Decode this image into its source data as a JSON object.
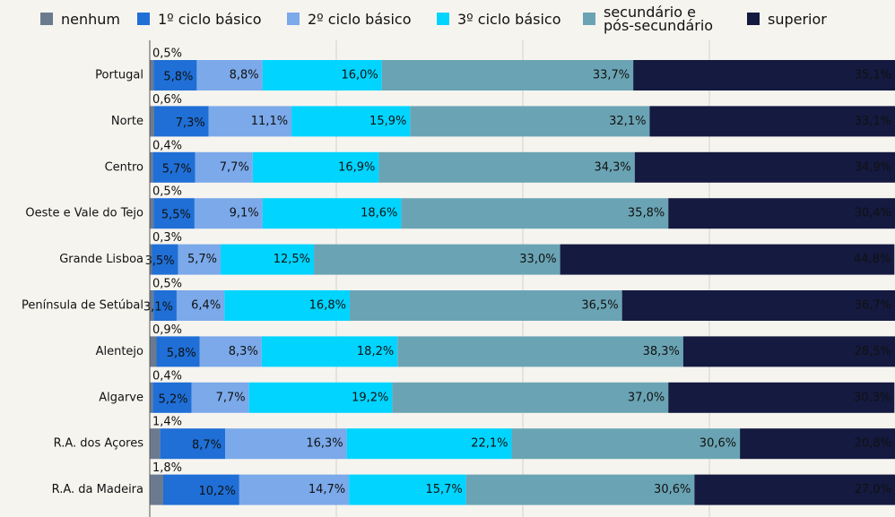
{
  "chart_data": {
    "type": "stacked_bar_horizontal",
    "categories": [
      "Portugal",
      "Norte",
      "Centro",
      "Oeste e Vale do Tejo",
      "Grande Lisboa",
      "Península de Setúbal",
      "Alentejo",
      "Algarve",
      "R.A. dos Açores",
      "R.A. da Madeira"
    ],
    "series": [
      {
        "name": "nenhum",
        "color": "#6c7a90",
        "values": [
          0.5,
          0.6,
          0.4,
          0.5,
          0.3,
          0.5,
          0.9,
          0.4,
          1.4,
          1.8
        ],
        "value_labels": [
          "0,5%",
          "0,6%",
          "0,4%",
          "0,5%",
          "0,3%",
          "0,5%",
          "0,9%",
          "0,4%",
          "1,4%",
          "1,8%"
        ]
      },
      {
        "name": "1º ciclo básico",
        "color": "#1f6fd6",
        "values": [
          5.8,
          7.3,
          5.7,
          5.5,
          3.5,
          3.1,
          5.8,
          5.2,
          8.7,
          10.2
        ],
        "value_labels": [
          "5,8%",
          "7,3%",
          "5,7%",
          "5,5%",
          "3,5%",
          "3,1%",
          "5,8%",
          "5,2%",
          "8,7%",
          "10,2%"
        ]
      },
      {
        "name": "2º ciclo básico",
        "color": "#7ba9ea",
        "values": [
          8.8,
          11.1,
          7.7,
          9.1,
          5.7,
          6.4,
          8.3,
          7.7,
          16.3,
          14.7
        ],
        "value_labels": [
          "8,8%",
          "11,1%",
          "7,7%",
          "9,1%",
          "5,7%",
          "6,4%",
          "8,3%",
          "7,7%",
          "16,3%",
          "14,7%"
        ]
      },
      {
        "name": "3º ciclo básico",
        "color": "#00d4ff",
        "values": [
          16.0,
          15.9,
          16.9,
          18.6,
          12.5,
          16.8,
          18.2,
          19.2,
          22.1,
          15.7
        ],
        "value_labels": [
          "16,0%",
          "15,9%",
          "16,9%",
          "18,6%",
          "12,5%",
          "16,8%",
          "18,2%",
          "19,2%",
          "22,1%",
          "15,7%"
        ]
      },
      {
        "name": "secundário e pós-secundário",
        "color": "#6aa4b4",
        "values": [
          33.7,
          32.1,
          34.3,
          35.8,
          33.0,
          36.5,
          38.3,
          37.0,
          30.6,
          30.6
        ],
        "value_labels": [
          "33,7%",
          "32,1%",
          "34,3%",
          "35,8%",
          "33,0%",
          "36,5%",
          "38,3%",
          "37,0%",
          "30,6%",
          "30,6%"
        ]
      },
      {
        "name": "superior",
        "color": "#141a40",
        "values": [
          35.1,
          33.1,
          34.9,
          30.4,
          44.8,
          36.7,
          28.5,
          30.3,
          20.8,
          27.0
        ],
        "value_labels": [
          "35,1%",
          "33,1%",
          "34,9%",
          "30,4%",
          "44,8%",
          "36,7%",
          "28,5%",
          "30,3%",
          "20,8%",
          "27,0%"
        ]
      }
    ],
    "xlim": [
      0,
      100
    ],
    "xticks": [
      0,
      25,
      50,
      75,
      100
    ],
    "grid": true
  }
}
